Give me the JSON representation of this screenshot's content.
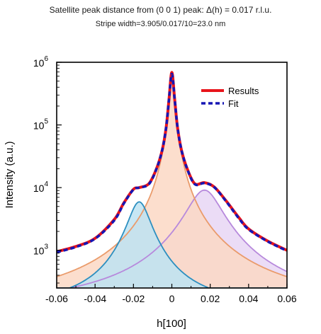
{
  "title": "Satellite peak distance from (0 0 1) peak: Δ(h) = 0.017 r.l.u.",
  "subtitle": "Stripe width=3.905/0.017/10=23.0 nm",
  "chart_data": {
    "type": "line",
    "xlabel": "h[100]",
    "ylabel": "Intensity (a.u.)",
    "xlim": [
      -0.06,
      0.06
    ],
    "ylim": [
      250,
      1000000
    ],
    "yscale": "log",
    "x_ticks": [
      "-0.06",
      "-0.04",
      "-0.02",
      "0",
      "0.02",
      "0.04",
      "0.06"
    ],
    "y_ticks": [
      {
        "value": 1000,
        "base": "10",
        "exp": "3"
      },
      {
        "value": 10000,
        "base": "10",
        "exp": "4"
      },
      {
        "value": 100000,
        "base": "10",
        "exp": "5"
      },
      {
        "value": 1000000,
        "base": "10",
        "exp": "6"
      }
    ],
    "legend": {
      "position": "top-right",
      "entries": [
        "Results",
        "Fit"
      ]
    },
    "colors": {
      "results": "#e8141b",
      "fit": "#1616b4",
      "left_peak_line": "#2c8fc0",
      "left_peak_fill": "#bde3f2",
      "center_peak_line": "#ea9b6b",
      "center_peak_fill": "#fbd8c4",
      "right_peak_line": "#b789dc",
      "right_peak_fill": "#e7d6f5"
    },
    "components": [
      {
        "center": -0.017,
        "amplitude": 5800,
        "gamma": 0.0055
      },
      {
        "center": 0.0,
        "amplitude": 650000,
        "gamma": 0.0012
      },
      {
        "center": 0.017,
        "amplitude": 9000,
        "gamma": 0.0085
      }
    ],
    "background": 120,
    "series": [
      {
        "name": "Results",
        "x": [
          -0.06,
          -0.05,
          -0.04,
          -0.03,
          -0.025,
          -0.02,
          -0.017,
          -0.012,
          -0.008,
          -0.005,
          -0.003,
          -0.0015,
          0.0,
          0.0015,
          0.003,
          0.005,
          0.008,
          0.012,
          0.017,
          0.022,
          0.028,
          0.035,
          0.04,
          0.05,
          0.06
        ],
        "y": [
          950,
          1150,
          1550,
          3100,
          5700,
          9400,
          10000,
          11500,
          20000,
          40000,
          90000,
          250000,
          690000,
          250000,
          90000,
          40000,
          20000,
          11500,
          12000,
          10300,
          6300,
          3300,
          2200,
          1400,
          1000
        ]
      },
      {
        "name": "Fit",
        "x": [
          -0.06,
          -0.05,
          -0.04,
          -0.03,
          -0.025,
          -0.02,
          -0.017,
          -0.012,
          -0.008,
          -0.005,
          -0.003,
          -0.0015,
          0.0,
          0.0015,
          0.003,
          0.005,
          0.008,
          0.012,
          0.017,
          0.022,
          0.028,
          0.035,
          0.04,
          0.05,
          0.06
        ],
        "y": [
          930,
          1130,
          1530,
          3000,
          5600,
          9300,
          10000,
          11300,
          19800,
          40000,
          90000,
          250000,
          650000,
          250000,
          90000,
          40000,
          19800,
          11300,
          11800,
          10200,
          6200,
          3200,
          2150,
          1380,
          980
        ]
      }
    ]
  }
}
